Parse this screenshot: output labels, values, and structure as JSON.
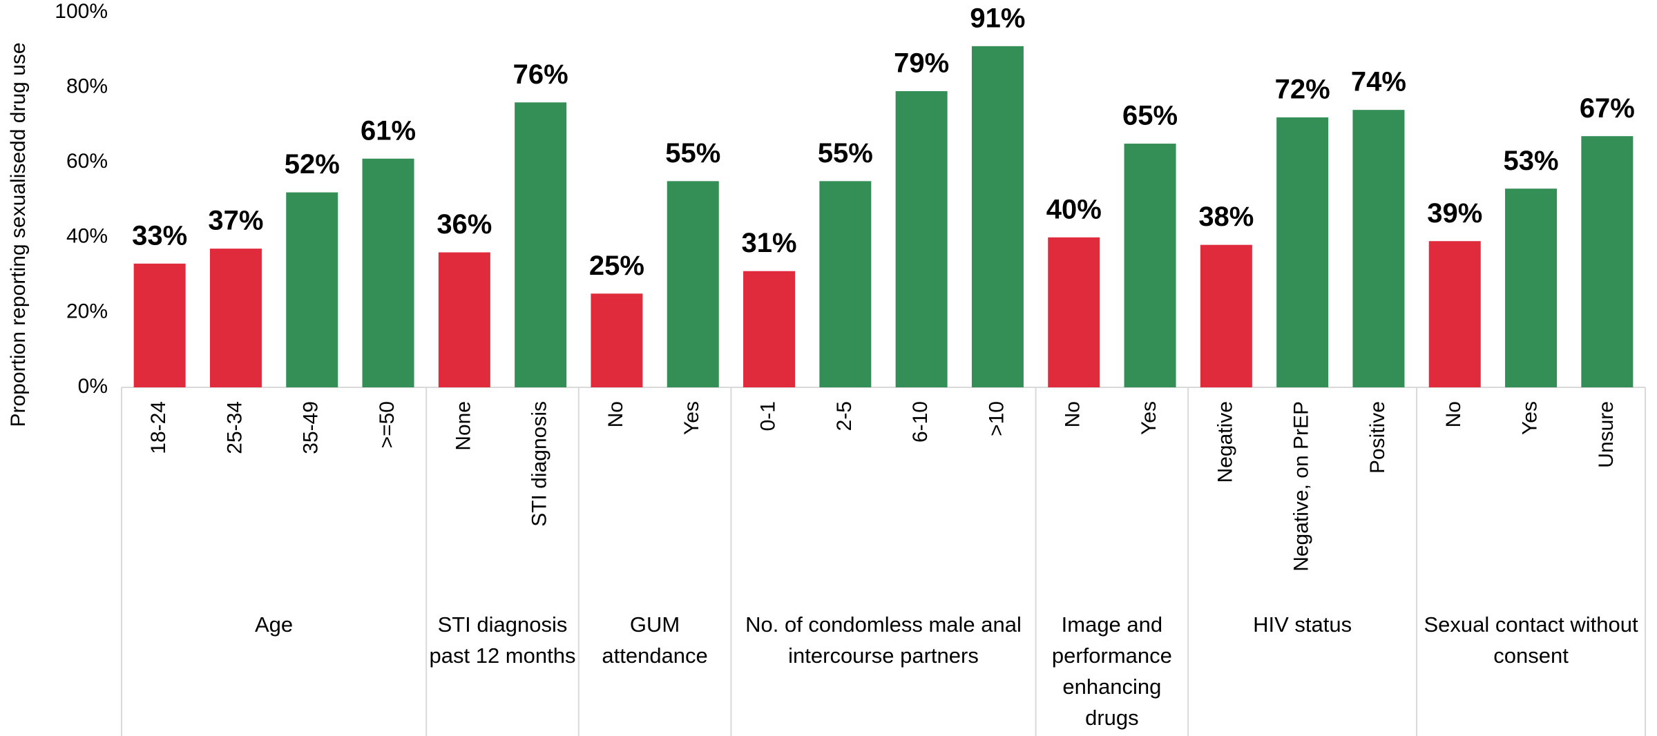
{
  "chart_data": {
    "type": "bar",
    "y_label": "Proportion reporting sexualisedd drug use",
    "categories": [
      "18-24",
      "25-34",
      "35-49",
      ">=50",
      "None",
      "STI diagnosis",
      "No",
      "Yes",
      "0-1",
      "2-5",
      "6-10",
      ">10",
      "No",
      "Yes",
      "Negative",
      "Negative, on PrEP",
      "Positive",
      "No",
      "Yes",
      "Unsure"
    ],
    "values": [
      33,
      37,
      52,
      61,
      36,
      76,
      25,
      55,
      31,
      55,
      79,
      91,
      40,
      65,
      38,
      72,
      74,
      39,
      53,
      67
    ],
    "value_labels": [
      "33%",
      "37%",
      "52%",
      "61%",
      "36%",
      "76%",
      "25%",
      "55%",
      "31%",
      "55%",
      "79%",
      "91%",
      "40%",
      "65%",
      "38%",
      "72%",
      "74%",
      "39%",
      "53%",
      "67%"
    ],
    "colors": [
      "#e02b3c",
      "#e02b3c",
      "#338f55",
      "#338f55",
      "#e02b3c",
      "#338f55",
      "#e02b3c",
      "#338f55",
      "#e02b3c",
      "#338f55",
      "#338f55",
      "#338f55",
      "#e02b3c",
      "#338f55",
      "#e02b3c",
      "#338f55",
      "#338f55",
      "#e02b3c",
      "#338f55",
      "#338f55"
    ],
    "groups": [
      {
        "label": "Age",
        "count": 4
      },
      {
        "label": "STI diagnosis past 12 months",
        "count": 2
      },
      {
        "label": "GUM attendance",
        "count": 2
      },
      {
        "label": "No. of condomless male anal intercourse partners",
        "count": 4
      },
      {
        "label": "Image and performance enhancing drugs",
        "count": 2
      },
      {
        "label": "HIV status",
        "count": 3
      },
      {
        "label": "Sexual contact without consent",
        "count": 3
      }
    ],
    "ylim": [
      0,
      100
    ],
    "yticks": [
      {
        "value": 0,
        "label": "0%"
      },
      {
        "value": 20,
        "label": "20%"
      },
      {
        "value": 40,
        "label": "40%"
      },
      {
        "value": 60,
        "label": "60%"
      },
      {
        "value": 80,
        "label": "80%"
      },
      {
        "value": 100,
        "label": "100%"
      }
    ],
    "grid": false
  }
}
